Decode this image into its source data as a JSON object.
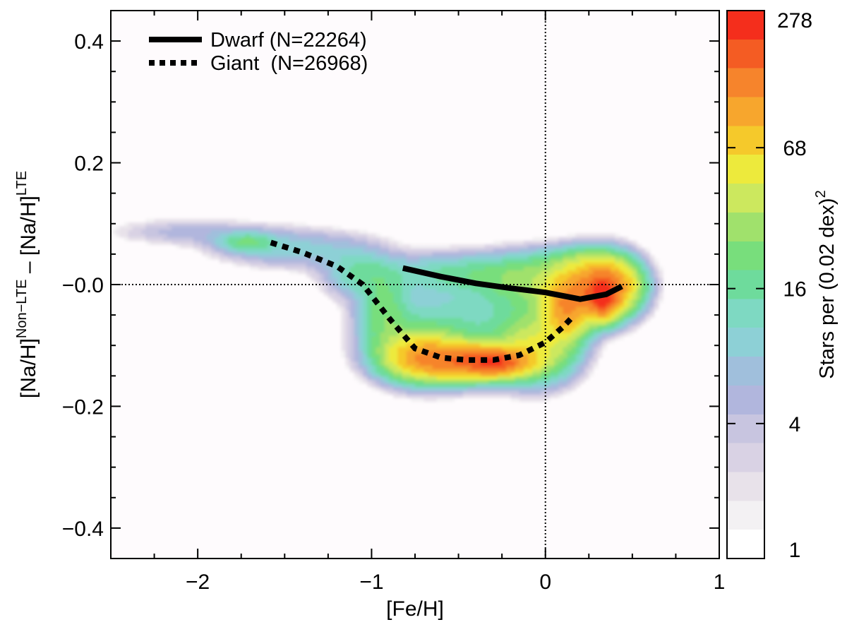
{
  "chart_data": {
    "type": "contour-density",
    "x": {
      "label": "[Fe/H]",
      "range": [
        -2.5,
        1.0
      ],
      "major_ticks": [
        -2,
        -1,
        0,
        1
      ],
      "tick_labels": [
        "−2",
        "−1",
        "0",
        "1"
      ],
      "minor_step": 0.25
    },
    "y": {
      "label_parts": [
        "[Na/H]",
        "Non−LTE",
        " – [Na/H]",
        "LTE"
      ],
      "range": [
        -0.45,
        0.45
      ],
      "major_ticks": [
        0.4,
        0.2,
        0.0,
        -0.2,
        -0.4
      ],
      "tick_labels": [
        "0.4",
        "0.2",
        "−0.0",
        "−0.2",
        "−0.4"
      ],
      "minor_step": 0.05
    },
    "reference_lines": {
      "x": 0,
      "y": 0,
      "style": "dotted"
    },
    "series": [
      {
        "name": "Dwarf",
        "legend_label": "Dwarf (N=22264)",
        "N": 22264,
        "style": "solid",
        "points": [
          [
            -0.82,
            0.027
          ],
          [
            -0.6,
            0.013
          ],
          [
            -0.4,
            0.002
          ],
          [
            -0.2,
            -0.006
          ],
          [
            0.0,
            -0.013
          ],
          [
            0.2,
            -0.024
          ],
          [
            0.35,
            -0.016
          ],
          [
            0.44,
            -0.003
          ]
        ]
      },
      {
        "name": "Giant",
        "legend_label": "Giant  (N=26968)",
        "N": 26968,
        "style": "dotted",
        "points": [
          [
            -1.58,
            0.069
          ],
          [
            -1.4,
            0.053
          ],
          [
            -1.2,
            0.03
          ],
          [
            -1.05,
            0.0
          ],
          [
            -0.9,
            -0.055
          ],
          [
            -0.75,
            -0.105
          ],
          [
            -0.6,
            -0.12
          ],
          [
            -0.45,
            -0.124
          ],
          [
            -0.3,
            -0.124
          ],
          [
            -0.15,
            -0.116
          ],
          [
            0.0,
            -0.095
          ],
          [
            0.1,
            -0.07
          ],
          [
            0.15,
            -0.055
          ]
        ]
      }
    ],
    "density": {
      "description": "2D histogram of stars per (0.02 dex)^2, log color scale",
      "blobs": [
        {
          "x": -2.05,
          "y": 0.087,
          "sx": 0.3,
          "sy": 0.014,
          "w": 5
        },
        {
          "x": -1.72,
          "y": 0.07,
          "sx": 0.1,
          "sy": 0.01,
          "w": 16
        },
        {
          "x": -1.45,
          "y": 0.06,
          "sx": 0.28,
          "sy": 0.02,
          "w": 9
        },
        {
          "x": -1.08,
          "y": 0.02,
          "sx": 0.12,
          "sy": 0.025,
          "w": 12
        },
        {
          "x": -0.93,
          "y": -0.045,
          "sx": 0.09,
          "sy": 0.04,
          "w": 20
        },
        {
          "x": -0.72,
          "y": -0.115,
          "sx": 0.14,
          "sy": 0.025,
          "w": 65
        },
        {
          "x": -0.45,
          "y": -0.125,
          "sx": 0.2,
          "sy": 0.018,
          "w": 130
        },
        {
          "x": -0.28,
          "y": -0.128,
          "sx": 0.1,
          "sy": 0.012,
          "w": 120
        },
        {
          "x": -0.05,
          "y": -0.1,
          "sx": 0.14,
          "sy": 0.035,
          "w": 45
        },
        {
          "x": -0.55,
          "y": -0.075,
          "sx": 0.28,
          "sy": 0.05,
          "w": 14
        },
        {
          "x": -0.45,
          "y": 0.02,
          "sx": 0.35,
          "sy": 0.02,
          "w": 14
        },
        {
          "x": 0.0,
          "y": 0.0,
          "sx": 0.22,
          "sy": 0.03,
          "w": 28
        },
        {
          "x": 0.3,
          "y": -0.005,
          "sx": 0.12,
          "sy": 0.03,
          "w": 110
        },
        {
          "x": 0.12,
          "y": -0.04,
          "sx": 0.08,
          "sy": 0.03,
          "w": 90
        },
        {
          "x": 0.33,
          "y": -0.02,
          "sx": 0.05,
          "sy": 0.02,
          "w": 160
        },
        {
          "x": 0.42,
          "y": 0.0,
          "sx": 0.09,
          "sy": 0.025,
          "w": 45
        },
        {
          "x": 0.18,
          "y": 0.04,
          "sx": 0.15,
          "sy": 0.015,
          "w": 10
        }
      ]
    },
    "colorbar": {
      "label": "Stars per (0.02 dex)",
      "label_superscript": "2",
      "scale": "log",
      "min": 1,
      "max": 278,
      "ticks": [
        278,
        68,
        16,
        4,
        1
      ],
      "tick_labels": [
        "278",
        "68",
        "16",
        "4",
        "1"
      ],
      "colors": [
        "#ffffff",
        "#f3f1f3",
        "#e8e2ea",
        "#d9d2e4",
        "#c8c5e0",
        "#b1b6dd",
        "#a0bfdc",
        "#8dd0d6",
        "#7ed9c2",
        "#6edb9c",
        "#78de7c",
        "#a0e16c",
        "#cce85e",
        "#edea3c",
        "#f5c92b",
        "#f7a62d",
        "#f6842c",
        "#f45c23",
        "#f42e1c"
      ]
    },
    "legend": {
      "position": "top-left"
    }
  }
}
